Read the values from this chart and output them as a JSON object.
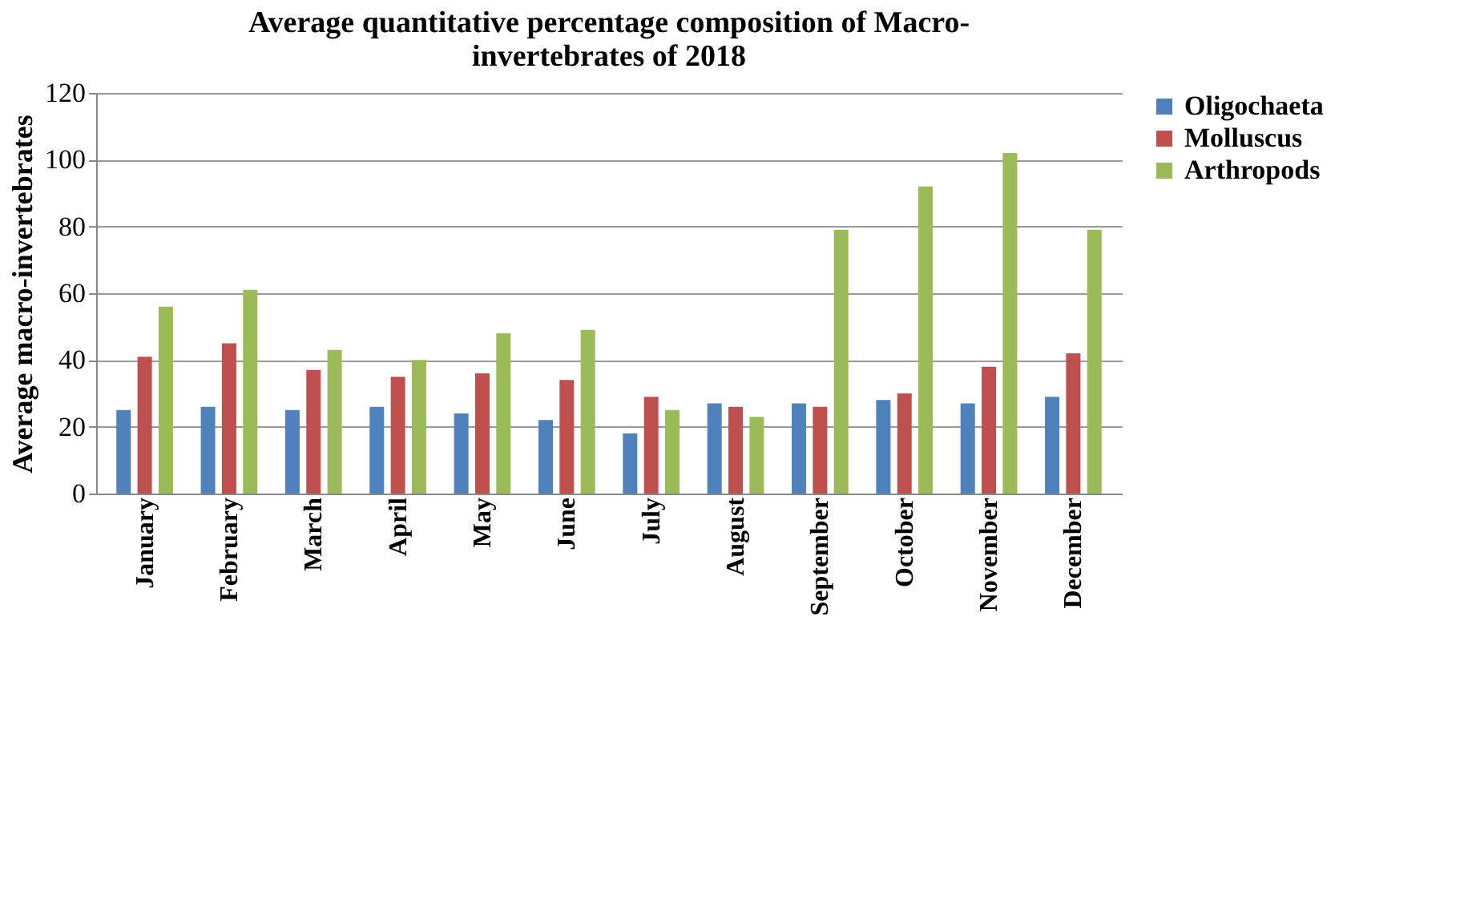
{
  "chart_data": {
    "type": "bar",
    "title": [
      "Average quantitative percentage composition of Macro-",
      "invertebrates  of 2018"
    ],
    "ylabel": "Average  macro-invertebrates",
    "categories": [
      "January",
      "February",
      "March",
      "April",
      "May",
      "June",
      "July",
      "August",
      "September",
      "October",
      "November",
      "December"
    ],
    "series": [
      {
        "name": "Oligochaeta",
        "color": "#4f81bd",
        "values": [
          25,
          26,
          25,
          26,
          24,
          22,
          18,
          27,
          27,
          28,
          27,
          29
        ]
      },
      {
        "name": "Molluscus",
        "color": "#c0504d",
        "values": [
          41,
          45,
          37,
          35,
          36,
          34,
          29,
          26,
          26,
          30,
          38,
          42
        ]
      },
      {
        "name": "Arthropods",
        "color": "#9bbb59",
        "values": [
          56,
          61,
          43,
          40,
          48,
          49,
          25,
          23,
          79,
          92,
          102,
          79
        ]
      }
    ],
    "ylim": [
      0,
      120
    ],
    "yticks": [
      0,
      20,
      40,
      60,
      80,
      100,
      120
    ],
    "grid": "y",
    "legend": "right"
  }
}
